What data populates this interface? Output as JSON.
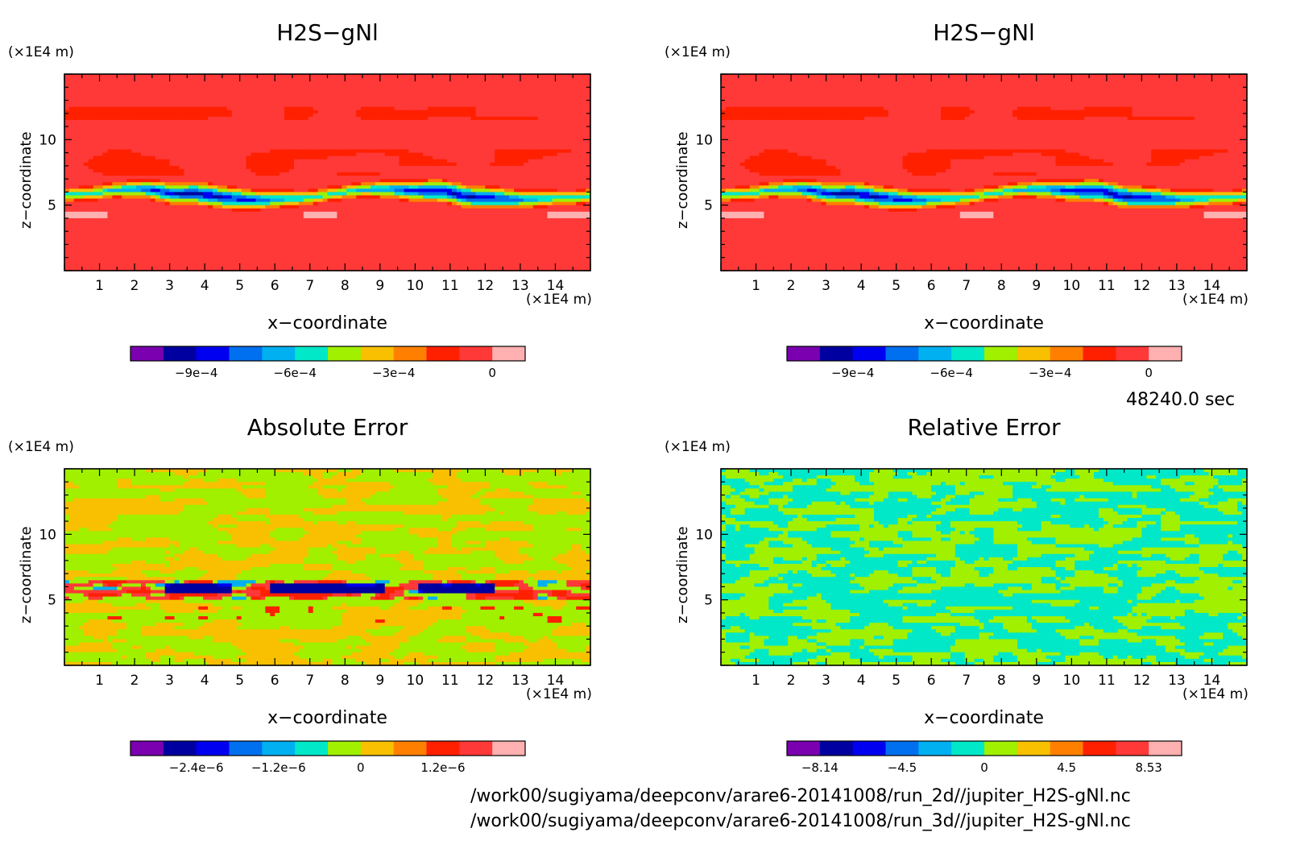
{
  "figure": {
    "time_label": "48240.0 sec",
    "file_paths": [
      "/work00/sugiyama/deepconv/arare6-20141008/run_2d//jupiter_H2S-gNl.nc",
      "/work00/sugiyama/deepconv/arare6-20141008/run_3d//jupiter_H2S-gNl.nc"
    ],
    "colors": {
      "palette": [
        "#7a00b0",
        "#0000a0",
        "#0000f0",
        "#0070f0",
        "#00b0f0",
        "#00e8c8",
        "#a0f000",
        "#f8c000",
        "#ff8000",
        "#ff2000",
        "#ff3838",
        "#ffb0b0"
      ]
    }
  },
  "chart_data": [
    {
      "type": "heatmap",
      "title": "H2S−gNl",
      "xlabel": "x−coordinate",
      "ylabel": "z−coordinate",
      "x_unit": "(×1E4 m)",
      "y_unit": "(×1E4 m)",
      "xlim": [
        0,
        15
      ],
      "ylim": [
        0,
        15
      ],
      "x_ticks": [
        1,
        2,
        3,
        4,
        5,
        6,
        7,
        8,
        9,
        10,
        11,
        12,
        13,
        14
      ],
      "y_ticks": [
        5,
        10
      ],
      "field": {
        "background": 10,
        "band_center_z": 5.8,
        "band_halfwidth": 0.9,
        "band_min": 1,
        "pink_patch_z": 4.3
      },
      "colorbar": {
        "levels": 12,
        "tick_labels": [
          "−9e−4",
          "−6e−4",
          "−3e−4",
          "0"
        ],
        "tick_index": [
          1,
          4,
          7,
          10
        ]
      }
    },
    {
      "type": "heatmap",
      "title": "H2S−gNl",
      "xlabel": "x−coordinate",
      "ylabel": "z−coordinate",
      "x_unit": "(×1E4 m)",
      "y_unit": "(×1E4 m)",
      "xlim": [
        0,
        15
      ],
      "ylim": [
        0,
        15
      ],
      "x_ticks": [
        1,
        2,
        3,
        4,
        5,
        6,
        7,
        8,
        9,
        10,
        11,
        12,
        13,
        14
      ],
      "y_ticks": [
        5,
        10
      ],
      "field": {
        "background": 10,
        "band_center_z": 5.8,
        "band_halfwidth": 0.9,
        "band_min": 1,
        "pink_patch_z": 4.3
      },
      "colorbar": {
        "levels": 12,
        "tick_labels": [
          "−9e−4",
          "−6e−4",
          "−3e−4",
          "0"
        ],
        "tick_index": [
          1,
          4,
          7,
          10
        ]
      }
    },
    {
      "type": "heatmap",
      "title": "Absolute Error",
      "xlabel": "x−coordinate",
      "ylabel": "z−coordinate",
      "x_unit": "(×1E4 m)",
      "y_unit": "(×1E4 m)",
      "xlim": [
        0,
        15
      ],
      "ylim": [
        0,
        15
      ],
      "x_ticks": [
        1,
        2,
        3,
        4,
        5,
        6,
        7,
        8,
        9,
        10,
        11,
        12,
        13,
        14
      ],
      "y_ticks": [
        5,
        10
      ],
      "field": {
        "dominant": [
          6,
          7
        ],
        "band_center_z": 5.8,
        "band_mix": [
          1,
          2,
          9,
          10
        ]
      },
      "colorbar": {
        "levels": 12,
        "tick_labels": [
          "−2.4e−6",
          "−1.2e−6",
          "0",
          "1.2e−6"
        ],
        "tick_index": [
          1,
          3.5,
          6,
          8.5
        ]
      }
    },
    {
      "type": "heatmap",
      "title": "Relative Error",
      "xlabel": "x−coordinate",
      "ylabel": "z−coordinate",
      "x_unit": "(×1E4 m)",
      "y_unit": "(×1E4 m)",
      "xlim": [
        0,
        15
      ],
      "ylim": [
        0,
        15
      ],
      "x_ticks": [
        1,
        2,
        3,
        4,
        5,
        6,
        7,
        8,
        9,
        10,
        11,
        12,
        13,
        14
      ],
      "y_ticks": [
        5,
        10
      ],
      "field": {
        "dominant": [
          5,
          6
        ]
      },
      "colorbar": {
        "levels": 12,
        "tick_labels": [
          "−8.14",
          "−4.5",
          "0",
          "4.5",
          "8.53"
        ],
        "tick_index": [
          0,
          2.5,
          5,
          7.5,
          10
        ]
      }
    }
  ]
}
